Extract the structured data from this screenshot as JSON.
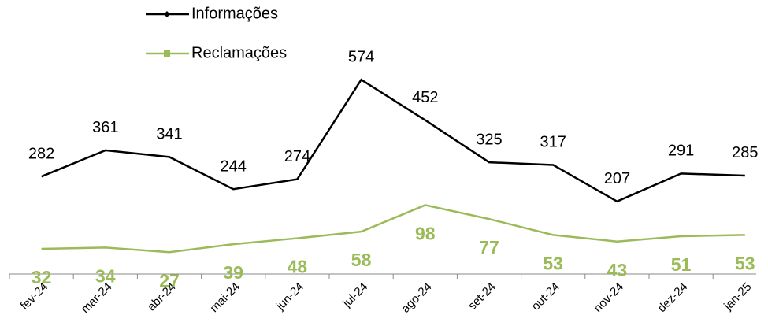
{
  "chart_data": {
    "type": "line",
    "categories": [
      "fev-24",
      "mar-24",
      "abr-24",
      "mai-24",
      "jun-24",
      "jul-24",
      "ago-24",
      "set-24",
      "out-24",
      "nov-24",
      "dez-24",
      "jan-25"
    ],
    "series": [
      {
        "name": "Informações",
        "color": "#000000",
        "values": [
          282,
          361,
          341,
          244,
          274,
          574,
          452,
          325,
          317,
          207,
          291,
          285
        ]
      },
      {
        "name": "Reclamações",
        "color": "#9bbb59",
        "axis": "y2",
        "values": [
          32,
          34,
          27,
          39,
          48,
          58,
          98,
          77,
          53,
          43,
          51,
          53
        ]
      }
    ],
    "ylim": [
      0,
      800
    ],
    "y2lim": [
      0,
      400
    ],
    "legend": "top"
  }
}
